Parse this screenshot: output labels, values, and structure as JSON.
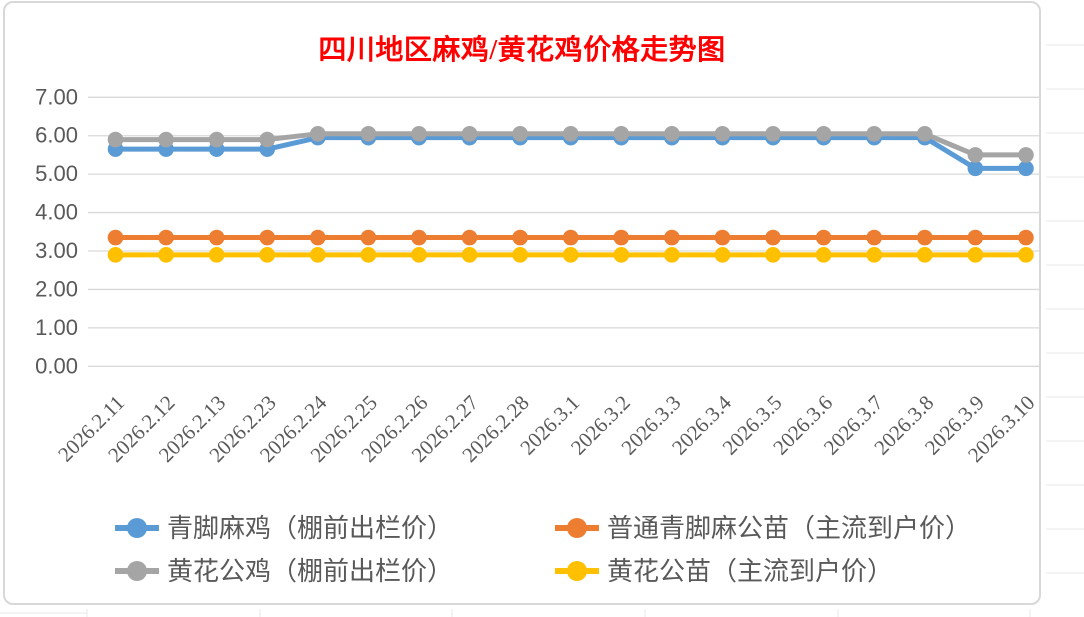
{
  "title": {
    "text": "四川地区麻鸡/黄花鸡价格走势图",
    "color": "#FF0000"
  },
  "chart_data": {
    "type": "line",
    "title": "四川地区麻鸡/黄花鸡价格走势图",
    "xlabel": "",
    "ylabel": "",
    "x": [
      "2026.2.11",
      "2026.2.12",
      "2026.2.13",
      "2026.2.23",
      "2026.2.24",
      "2026.2.25",
      "2026.2.26",
      "2026.2.27",
      "2026.2.28",
      "2026.3.1",
      "2026.3.2",
      "2026.3.3",
      "2026.3.4",
      "2026.3.5",
      "2026.3.6",
      "2026.3.7",
      "2026.3.8",
      "2026.3.9",
      "2026.3.10"
    ],
    "series": [
      {
        "name": "青脚麻鸡（棚前出栏价）",
        "color": "#5B9BD5",
        "values": [
          5.65,
          5.65,
          5.65,
          5.65,
          5.95,
          5.95,
          5.95,
          5.95,
          5.95,
          5.95,
          5.95,
          5.95,
          5.95,
          5.95,
          5.95,
          5.95,
          5.95,
          5.15,
          5.15
        ]
      },
      {
        "name": "普通青脚麻公苗（主流到户价）",
        "color": "#ED7D31",
        "values": [
          3.35,
          3.35,
          3.35,
          3.35,
          3.35,
          3.35,
          3.35,
          3.35,
          3.35,
          3.35,
          3.35,
          3.35,
          3.35,
          3.35,
          3.35,
          3.35,
          3.35,
          3.35,
          3.35
        ]
      },
      {
        "name": "黄花公鸡（棚前出栏价）",
        "color": "#A5A5A5",
        "values": [
          5.9,
          5.9,
          5.9,
          5.9,
          6.05,
          6.05,
          6.05,
          6.05,
          6.05,
          6.05,
          6.05,
          6.05,
          6.05,
          6.05,
          6.05,
          6.05,
          6.05,
          5.5,
          5.5
        ]
      },
      {
        "name": "黄花公苗（主流到户价）",
        "color": "#FFC000",
        "values": [
          2.9,
          2.9,
          2.9,
          2.9,
          2.9,
          2.9,
          2.9,
          2.9,
          2.9,
          2.9,
          2.9,
          2.9,
          2.9,
          2.9,
          2.9,
          2.9,
          2.9,
          2.9,
          2.9
        ]
      }
    ],
    "ylim": [
      0,
      7
    ],
    "ytick_labels": [
      "0.00",
      "1.00",
      "2.00",
      "3.00",
      "4.00",
      "5.00",
      "6.00",
      "7.00"
    ],
    "grid": true,
    "grid_color": "#D9D9D9",
    "axis_label_color": "#595959",
    "legend_position": "bottom"
  }
}
